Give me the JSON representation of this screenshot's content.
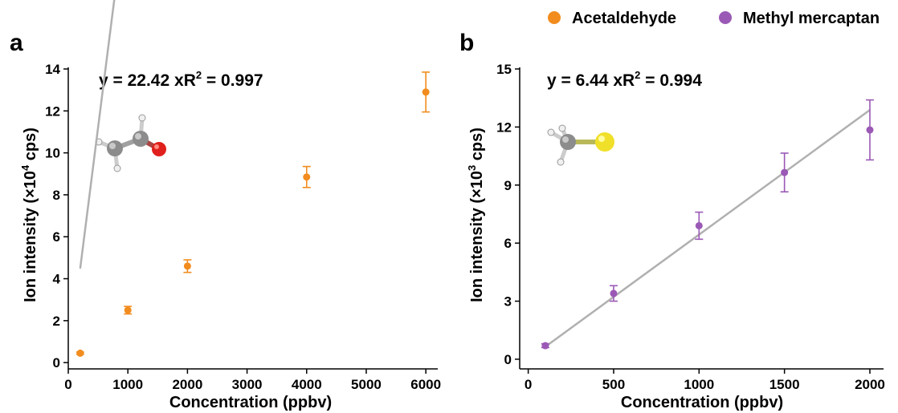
{
  "legend": {
    "items": [
      {
        "label": "Acetaldehyde",
        "color": "#f28c1e"
      },
      {
        "label": "Methyl mercaptan",
        "color": "#9b59b6"
      }
    ]
  },
  "chart_data": [
    {
      "type": "scatter",
      "panel_label": "a",
      "series": [
        {
          "name": "Acetaldehyde",
          "x": [
            200,
            1000,
            2000,
            4000,
            6000
          ],
          "y": [
            0.45,
            2.5,
            4.6,
            8.85,
            12.9
          ],
          "yerr": [
            0.05,
            0.18,
            0.3,
            0.5,
            0.95
          ],
          "color": "#f28c1e"
        }
      ],
      "fit": {
        "slope": 22.42,
        "x_scale": 0.001,
        "x_range": [
          200,
          6000
        ],
        "color": "#b0b0b0"
      },
      "equation": {
        "y_part": "y = 22.42 x",
        "r_part": "R",
        "r_sup": "2",
        "r_value": " = 0.997"
      },
      "xlabel": "Concentration (ppbv)",
      "ylabel": {
        "pre": "Ion intensity (×10",
        "sup": "4",
        "post": " cps)"
      },
      "xlim": [
        0,
        6200
      ],
      "ylim": [
        -0.3,
        14
      ],
      "xticks": [
        0,
        1000,
        2000,
        3000,
        4000,
        5000,
        6000
      ],
      "yticks": [
        0,
        2,
        4,
        6,
        8,
        10,
        12,
        14
      ],
      "grid": false,
      "molecule_icon": "acetaldehyde-ball-and-stick"
    },
    {
      "type": "scatter",
      "panel_label": "b",
      "series": [
        {
          "name": "Methyl mercaptan",
          "x": [
            100,
            500,
            1000,
            1500,
            2000
          ],
          "y": [
            0.7,
            3.4,
            6.9,
            9.65,
            11.85
          ],
          "yerr": [
            0.1,
            0.4,
            0.7,
            1.0,
            1.55
          ],
          "color": "#9b59b6"
        }
      ],
      "fit": {
        "slope": 6.44,
        "x_scale": 0.001,
        "x_range": [
          100,
          2000
        ],
        "color": "#b0b0b0"
      },
      "equation": {
        "y_part": "y = 6.44 x",
        "r_part": "R",
        "r_sup": "2",
        "r_value": " = 0.994"
      },
      "xlabel": "Concentration (ppbv)",
      "ylabel": {
        "pre": "Ion intensity (×10",
        "sup": "3",
        "post": " cps)"
      },
      "xlim": [
        -50,
        2080
      ],
      "ylim": [
        -0.5,
        15
      ],
      "xticks": [
        0,
        500,
        1000,
        1500,
        2000
      ],
      "yticks": [
        0,
        3,
        6,
        9,
        12,
        15
      ],
      "grid": false,
      "molecule_icon": "methyl-mercaptan-ball-and-stick"
    }
  ]
}
